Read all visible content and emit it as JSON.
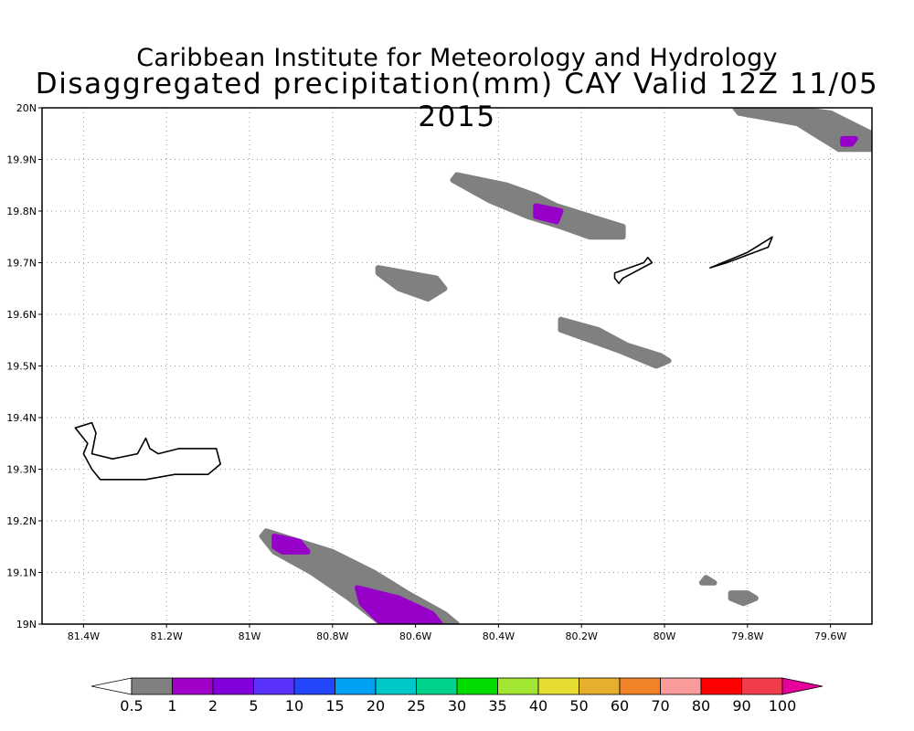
{
  "title": {
    "line1": "Caribbean Institute for Meteorology and Hydrology",
    "line2": "Disaggregated precipitation(mm) CAY Valid 12Z 11/05 2015"
  },
  "map": {
    "lon_range": [
      -81.5,
      -79.5
    ],
    "lat_range": [
      19.0,
      20.0
    ],
    "grid": "dotted",
    "x_ticks": [
      {
        "lon": -81.4,
        "label": "81.4W"
      },
      {
        "lon": -81.2,
        "label": "81.2W"
      },
      {
        "lon": -81.0,
        "label": "81W"
      },
      {
        "lon": -80.8,
        "label": "80.8W"
      },
      {
        "lon": -80.6,
        "label": "80.6W"
      },
      {
        "lon": -80.4,
        "label": "80.4W"
      },
      {
        "lon": -80.2,
        "label": "80.2W"
      },
      {
        "lon": -80.0,
        "label": "80W"
      },
      {
        "lon": -79.8,
        "label": "79.8W"
      },
      {
        "lon": -79.6,
        "label": "79.6W"
      }
    ],
    "y_ticks": [
      {
        "lat": 19.0,
        "label": "19N"
      },
      {
        "lat": 19.1,
        "label": "19.1N"
      },
      {
        "lat": 19.2,
        "label": "19.2N"
      },
      {
        "lat": 19.3,
        "label": "19.3N"
      },
      {
        "lat": 19.4,
        "label": "19.4N"
      },
      {
        "lat": 19.5,
        "label": "19.5N"
      },
      {
        "lat": 19.6,
        "label": "19.6N"
      },
      {
        "lat": 19.7,
        "label": "19.7N"
      },
      {
        "lat": 19.8,
        "label": "19.8N"
      },
      {
        "lat": 19.9,
        "label": "19.9N"
      },
      {
        "lat": 20.0,
        "label": "20N"
      }
    ],
    "precip_areas": [
      {
        "level": "0.5-1",
        "color": "#808080",
        "lon": [
          -80.5,
          -80.38,
          -80.31,
          -80.26,
          -80.18,
          -80.1,
          -80.1,
          -80.18,
          -80.25,
          -80.33,
          -80.42,
          -80.51
        ],
        "lat": [
          19.87,
          19.85,
          19.83,
          19.81,
          19.79,
          19.77,
          19.75,
          19.75,
          19.77,
          19.79,
          19.82,
          19.86
        ]
      },
      {
        "level": "1-2",
        "color": "#9600c8",
        "lon": [
          -80.31,
          -80.25,
          -80.26,
          -80.31
        ],
        "lat": [
          19.81,
          19.8,
          19.78,
          19.79
        ]
      },
      {
        "level": "0.5-1",
        "color": "#808080",
        "lon": [
          -80.69,
          -80.62,
          -80.55,
          -80.53,
          -80.57,
          -80.64,
          -80.69
        ],
        "lat": [
          19.69,
          19.68,
          19.67,
          19.65,
          19.63,
          19.65,
          19.68
        ]
      },
      {
        "level": "0.5-1",
        "color": "#808080",
        "lon": [
          -80.25,
          -80.16,
          -80.09,
          -80.01,
          -79.99,
          -80.02,
          -80.11,
          -80.18,
          -80.25
        ],
        "lat": [
          19.59,
          19.57,
          19.54,
          19.52,
          19.51,
          19.5,
          19.53,
          19.55,
          19.57
        ]
      },
      {
        "level": "0.5-1",
        "color": "#808080",
        "lon": [
          -79.83,
          -79.7,
          -79.6,
          -79.5,
          -79.5,
          -79.58,
          -79.68,
          -79.82
        ],
        "lat": [
          20.0,
          20.0,
          19.99,
          19.95,
          19.92,
          19.92,
          19.97,
          19.99
        ]
      },
      {
        "level": "1-2",
        "color": "#9600c8",
        "lon": [
          -79.57,
          -79.54,
          -79.55,
          -79.57
        ],
        "lat": [
          19.94,
          19.94,
          19.93,
          19.93
        ]
      },
      {
        "level": "0.5-1",
        "color": "#808080",
        "lon": [
          -80.96,
          -80.88,
          -80.8,
          -80.7,
          -80.62,
          -80.53,
          -80.5,
          -80.68,
          -80.76,
          -80.85,
          -80.94,
          -80.97
        ],
        "lat": [
          19.18,
          19.16,
          19.14,
          19.1,
          19.06,
          19.02,
          19.0,
          19.0,
          19.05,
          19.1,
          19.14,
          19.17
        ]
      },
      {
        "level": "1-2",
        "color": "#9600c8",
        "lon": [
          -80.94,
          -80.88,
          -80.86,
          -80.92,
          -80.94
        ],
        "lat": [
          19.17,
          19.16,
          19.14,
          19.14,
          19.15
        ]
      },
      {
        "level": "1-2",
        "color": "#9600c8",
        "lon": [
          -80.74,
          -80.64,
          -80.56,
          -80.54,
          -80.68,
          -80.73
        ],
        "lat": [
          19.07,
          19.05,
          19.02,
          19.0,
          19.0,
          19.04
        ]
      },
      {
        "level": "0.5-1",
        "color": "#808080",
        "lon": [
          -79.9,
          -79.88,
          -79.91
        ],
        "lat": [
          19.09,
          19.08,
          19.08
        ]
      },
      {
        "level": "0.5-1",
        "color": "#808080",
        "lon": [
          -79.84,
          -79.8,
          -79.78,
          -79.81,
          -79.84
        ],
        "lat": [
          19.06,
          19.06,
          19.05,
          19.04,
          19.05
        ]
      }
    ],
    "islands": [
      {
        "name": "",
        "lon": [
          -81.42,
          -81.38,
          -81.37,
          -81.38,
          -81.33,
          -81.27,
          -81.25,
          -81.24,
          -81.22,
          -81.17,
          -81.08,
          -81.07,
          -81.1,
          -81.18,
          -81.25,
          -81.3,
          -81.36,
          -81.38,
          -81.4,
          -81.39,
          -81.42
        ],
        "lat": [
          19.38,
          19.39,
          19.37,
          19.33,
          19.32,
          19.33,
          19.36,
          19.34,
          19.33,
          19.34,
          19.34,
          19.31,
          19.29,
          19.29,
          19.28,
          19.28,
          19.28,
          19.3,
          19.33,
          19.35,
          19.38
        ]
      },
      {
        "name": "",
        "lon": [
          -80.12,
          -80.05,
          -80.04,
          -80.03,
          -80.1,
          -80.11,
          -80.12
        ],
        "lat": [
          19.68,
          19.7,
          19.71,
          19.7,
          19.67,
          19.66,
          19.67
        ]
      },
      {
        "name": "",
        "lon": [
          -79.89,
          -79.8,
          -79.76,
          -79.74,
          -79.75,
          -79.85,
          -79.89
        ],
        "lat": [
          19.69,
          19.72,
          19.74,
          19.75,
          19.73,
          19.7,
          19.69
        ]
      }
    ]
  },
  "colorbar": {
    "labels": [
      "0.5",
      "1",
      "2",
      "5",
      "10",
      "15",
      "20",
      "25",
      "30",
      "35",
      "40",
      "50",
      "60",
      "70",
      "80",
      "90",
      "100"
    ],
    "colors": [
      "#ffffff",
      "#808080",
      "#a000c8",
      "#8200dc",
      "#5a32fa",
      "#2346fa",
      "#00a0f5",
      "#00c8c8",
      "#00d28c",
      "#00dc00",
      "#a0e632",
      "#e6dc32",
      "#e6af2d",
      "#f08228",
      "#fa9b9b",
      "#ff0000",
      "#f03c4b",
      "#e6009b"
    ]
  }
}
